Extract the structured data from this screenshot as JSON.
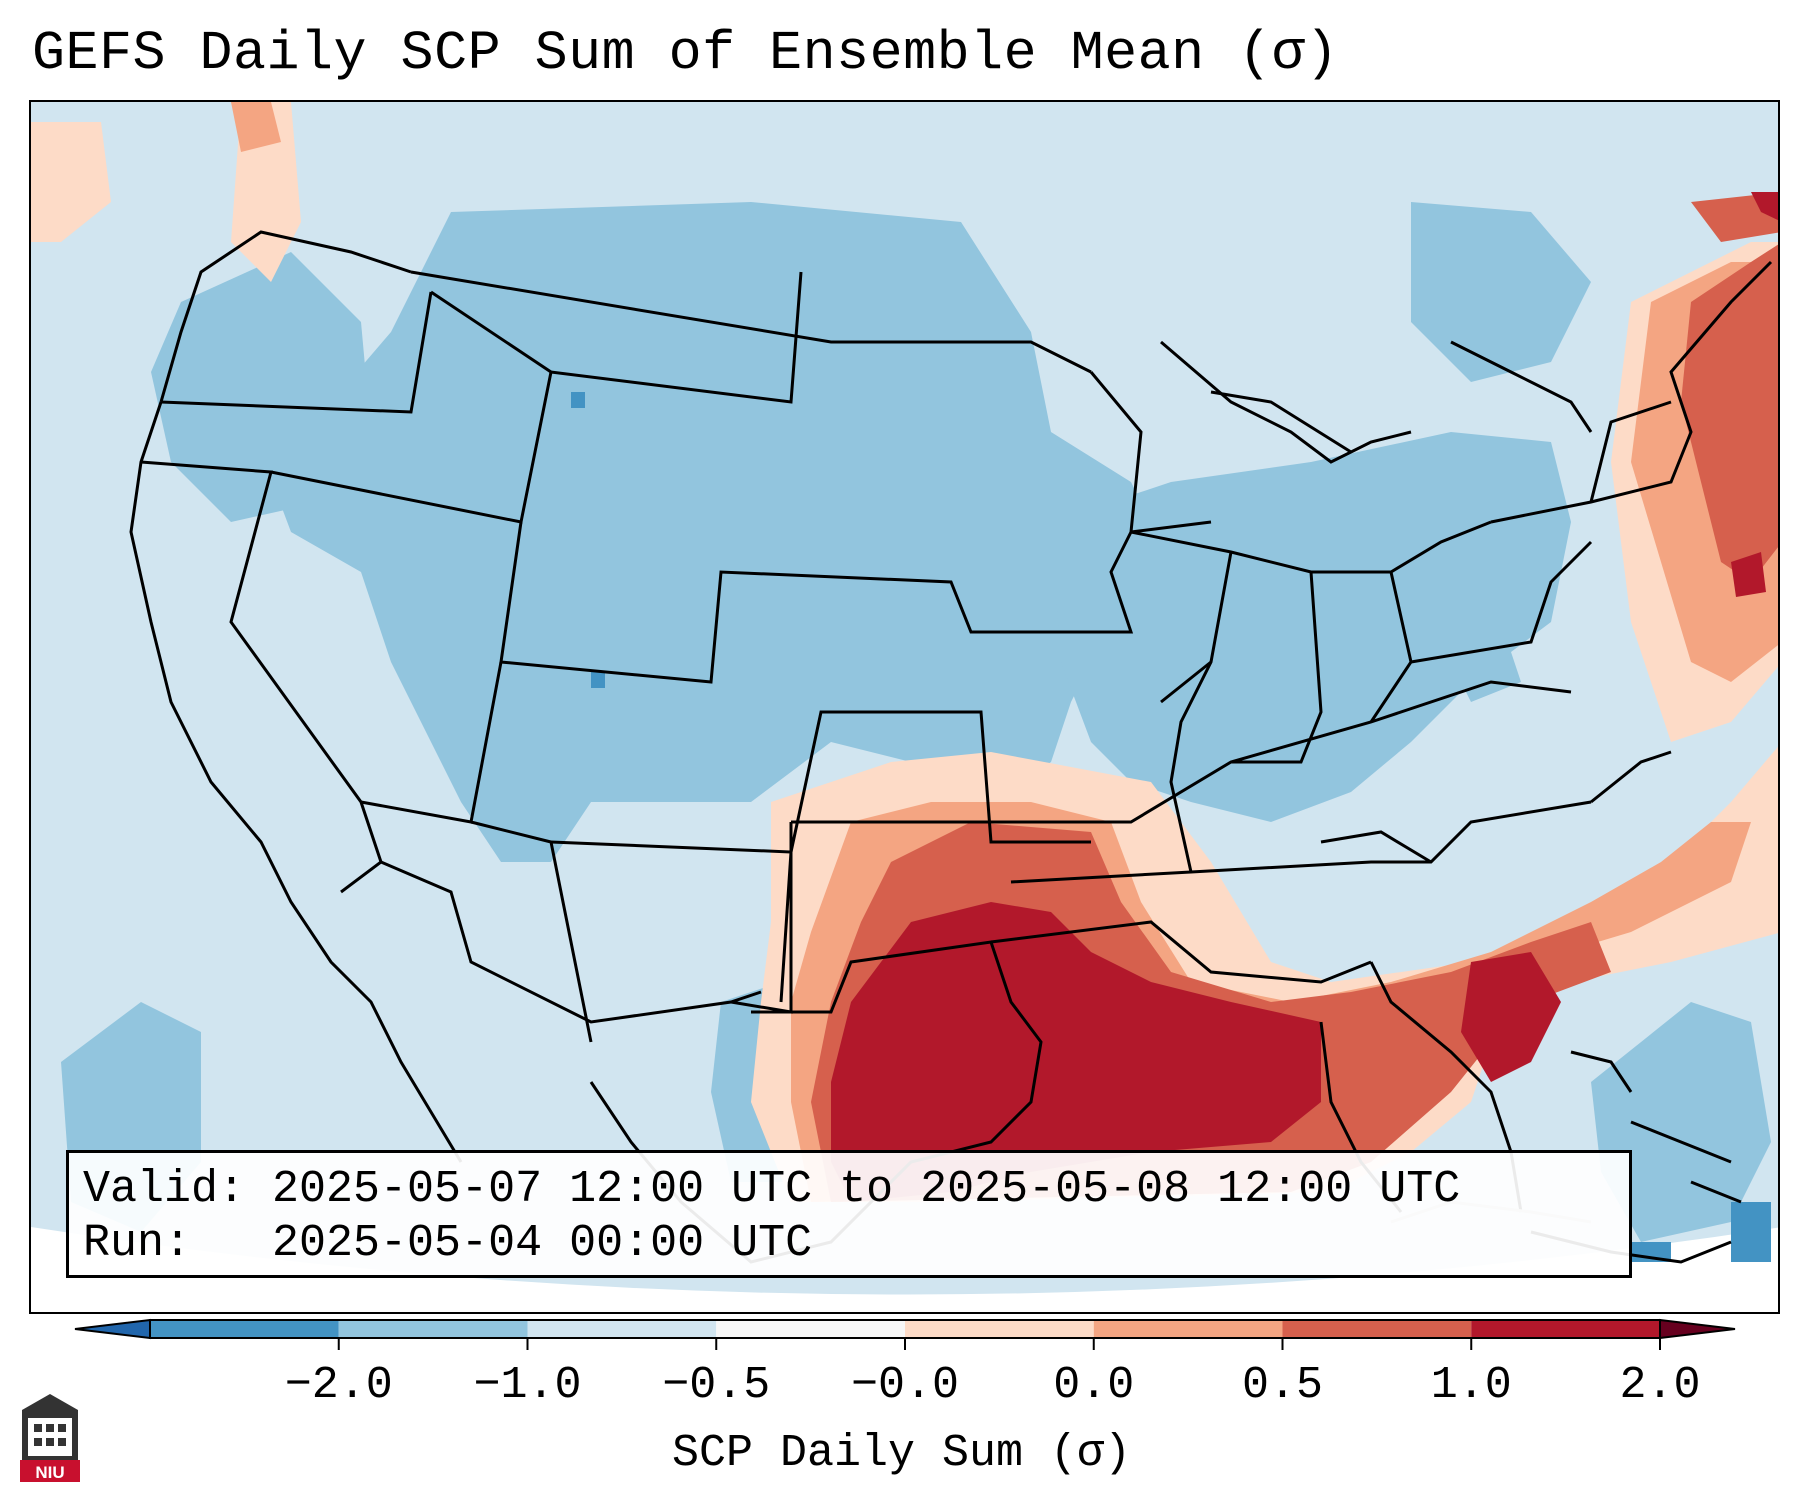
{
  "title": "GEFS Daily SCP Sum of Ensemble Mean (σ)",
  "info": {
    "valid_line": "Valid: 2025-05-07 12:00 UTC to 2025-05-08 12:00 UTC",
    "run_line": "Run:   2025-05-04 00:00 UTC"
  },
  "colorbar": {
    "label": "SCP Daily Sum (σ)",
    "ticks": [
      "−2.0",
      "−1.0",
      "−0.5",
      "−0.0",
      "0.0",
      "0.5",
      "1.0",
      "2.0"
    ],
    "colors": [
      "#4393c3",
      "#92c5de",
      "#d1e5f0",
      "#f7f7f7",
      "#fddbc7",
      "#f4a582",
      "#d6604d",
      "#b2182b"
    ],
    "extend": "both"
  },
  "logo": {
    "text": "NIU"
  }
}
